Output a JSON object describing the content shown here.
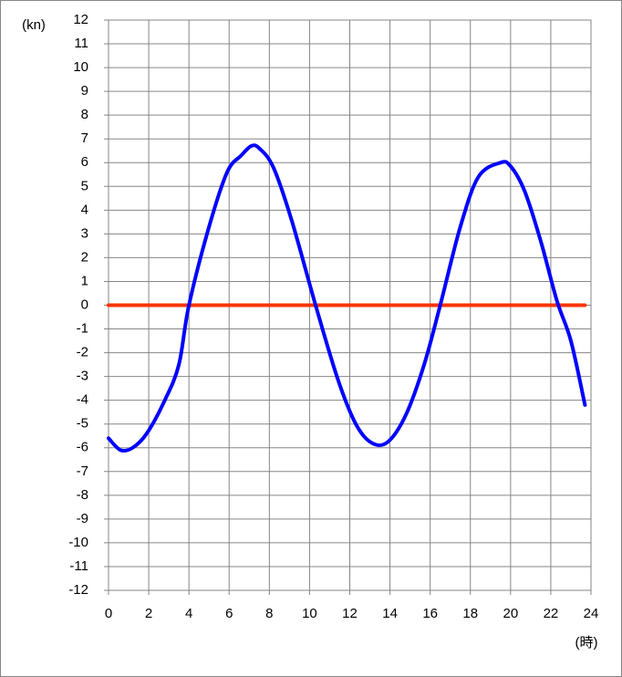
{
  "chart_data": {
    "type": "line",
    "y_label": "(kn)",
    "x_label": "(時)",
    "xlim": [
      0,
      24
    ],
    "xticks": [
      0,
      2,
      4,
      6,
      8,
      10,
      12,
      14,
      16,
      18,
      20,
      22,
      24
    ],
    "ylim": [
      -12,
      12
    ],
    "yticks": [
      -12,
      -11,
      -10,
      -9,
      -8,
      -7,
      -6,
      -5,
      -4,
      -3,
      -2,
      -1,
      0,
      1,
      2,
      3,
      4,
      5,
      6,
      7,
      8,
      9,
      10,
      11,
      12
    ],
    "grid": true,
    "series": [
      {
        "color": "#0000ff",
        "x": [
          0,
          0.6,
          1.2,
          1.9,
          2.8,
          3.5,
          4.0,
          5.0,
          5.9,
          6.6,
          7.1,
          7.5,
          8.2,
          9.1,
          10.3,
          11.4,
          12.3,
          13.1,
          13.9,
          14.8,
          15.7,
          16.5,
          17.5,
          18.4,
          19.5,
          20.0,
          20.7,
          21.5,
          22.3,
          23.0,
          23.7
        ],
        "values": [
          -5.6,
          -6.1,
          -6.0,
          -5.4,
          -4.0,
          -2.5,
          0,
          3.3,
          5.6,
          6.3,
          6.7,
          6.6,
          5.8,
          3.6,
          0,
          -3.1,
          -5.0,
          -5.8,
          -5.75,
          -4.6,
          -2.5,
          0,
          3.3,
          5.4,
          6.0,
          5.85,
          4.8,
          2.7,
          0.2,
          -1.5,
          -4.2
        ]
      },
      {
        "color": "#ff3300",
        "x": [
          0,
          23.7
        ],
        "values": [
          0,
          0
        ]
      }
    ]
  }
}
